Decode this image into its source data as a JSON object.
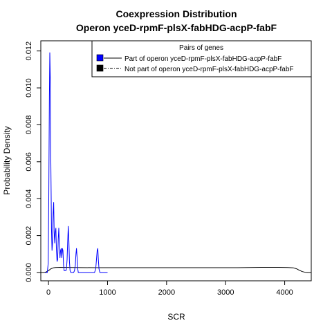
{
  "chart_data": {
    "type": "line",
    "title": "Coexpression Distribution",
    "subtitle": "Operon yceD-rpmF-plsX-fabHDG-acpP-fabF",
    "xlabel": "SCR",
    "ylabel": "Probability Density",
    "xlim": [
      -130,
      4450
    ],
    "ylim": [
      -0.00045,
      0.01255
    ],
    "x_ticks": [
      0,
      1000,
      2000,
      3000,
      4000
    ],
    "x_tick_labels": [
      "0",
      "1000",
      "2000",
      "3000",
      "4000"
    ],
    "y_ticks": [
      0.0,
      0.002,
      0.004,
      0.006,
      0.008,
      0.01,
      0.012
    ],
    "y_tick_labels": [
      "0.000",
      "0.002",
      "0.004",
      "0.006",
      "0.008",
      "0.010",
      "0.012"
    ],
    "grid": false,
    "legend": {
      "title": "Pairs of genes",
      "placement": "top-right",
      "entries": [
        "Part of operon yceD-rpmF-plsX-fabHDG-acpP-fabF",
        "Not part of operon yceD-rpmF-plsX-fabHDG-acpP-fabF"
      ]
    },
    "series": [
      {
        "name": "Part of operon yceD-rpmF-plsX-fabHDG-acpP-fabF",
        "color": "#0000ff",
        "x": [
          -60,
          -20,
          -5,
          5,
          15,
          22,
          30,
          40,
          50,
          60,
          68,
          78,
          88,
          96,
          105,
          115,
          125,
          135,
          145,
          155,
          165,
          175,
          185,
          195,
          205,
          215,
          225,
          235,
          245,
          255,
          265,
          275,
          285,
          295,
          305,
          315,
          325,
          335,
          345,
          355,
          365,
          380,
          395,
          410,
          425,
          440,
          455,
          465,
          475,
          485,
          495,
          505,
          520,
          540,
          560,
          600,
          650,
          700,
          750,
          780,
          800,
          815,
          825,
          835,
          845,
          855,
          870,
          900,
          950,
          1000
        ],
        "y": [
          0.0,
          0.0,
          0.0005,
          0.004,
          0.0095,
          0.0119,
          0.0105,
          0.006,
          0.0024,
          0.0012,
          0.0016,
          0.0032,
          0.0038,
          0.0022,
          0.0016,
          0.0022,
          0.0024,
          0.0012,
          0.0006,
          0.0007,
          0.0018,
          0.0024,
          0.0014,
          0.0008,
          0.0012,
          0.0013,
          0.0008,
          0.0013,
          0.0012,
          0.0004,
          0.0001,
          0.0001,
          0.0001,
          0.0001,
          0.0002,
          0.0007,
          0.0016,
          0.0025,
          0.0017,
          0.0006,
          0.0001,
          0.0,
          0.0,
          0.0,
          0.0,
          0.0001,
          0.0004,
          0.001,
          0.0013,
          0.0008,
          0.0002,
          0.0,
          0.0,
          0.0,
          0.0,
          0.0,
          0.0,
          0.0,
          0.0,
          0.0,
          0.0002,
          0.0008,
          0.0012,
          0.0013,
          0.0007,
          0.0002,
          0.0,
          0.0,
          0.0,
          0.0
        ]
      },
      {
        "name": "Not part of operon yceD-rpmF-plsX-fabHDG-acpP-fabF",
        "color": "#000000",
        "x": [
          -130,
          -80,
          -40,
          0,
          40,
          80,
          120,
          200,
          400,
          800,
          1200,
          1600,
          2000,
          2400,
          2800,
          3200,
          3600,
          3900,
          4050,
          4150,
          4200,
          4250,
          4300,
          4350,
          4400,
          4450
        ],
        "y": [
          0.0,
          0.0,
          3e-05,
          0.0001,
          0.0002,
          0.00025,
          0.00027,
          0.00028,
          0.00027,
          0.00026,
          0.00026,
          0.00026,
          0.00026,
          0.00026,
          0.00026,
          0.00026,
          0.00028,
          0.00028,
          0.00027,
          0.00025,
          0.0002,
          0.00012,
          5e-05,
          1e-05,
          0.0,
          0.0
        ]
      }
    ]
  }
}
